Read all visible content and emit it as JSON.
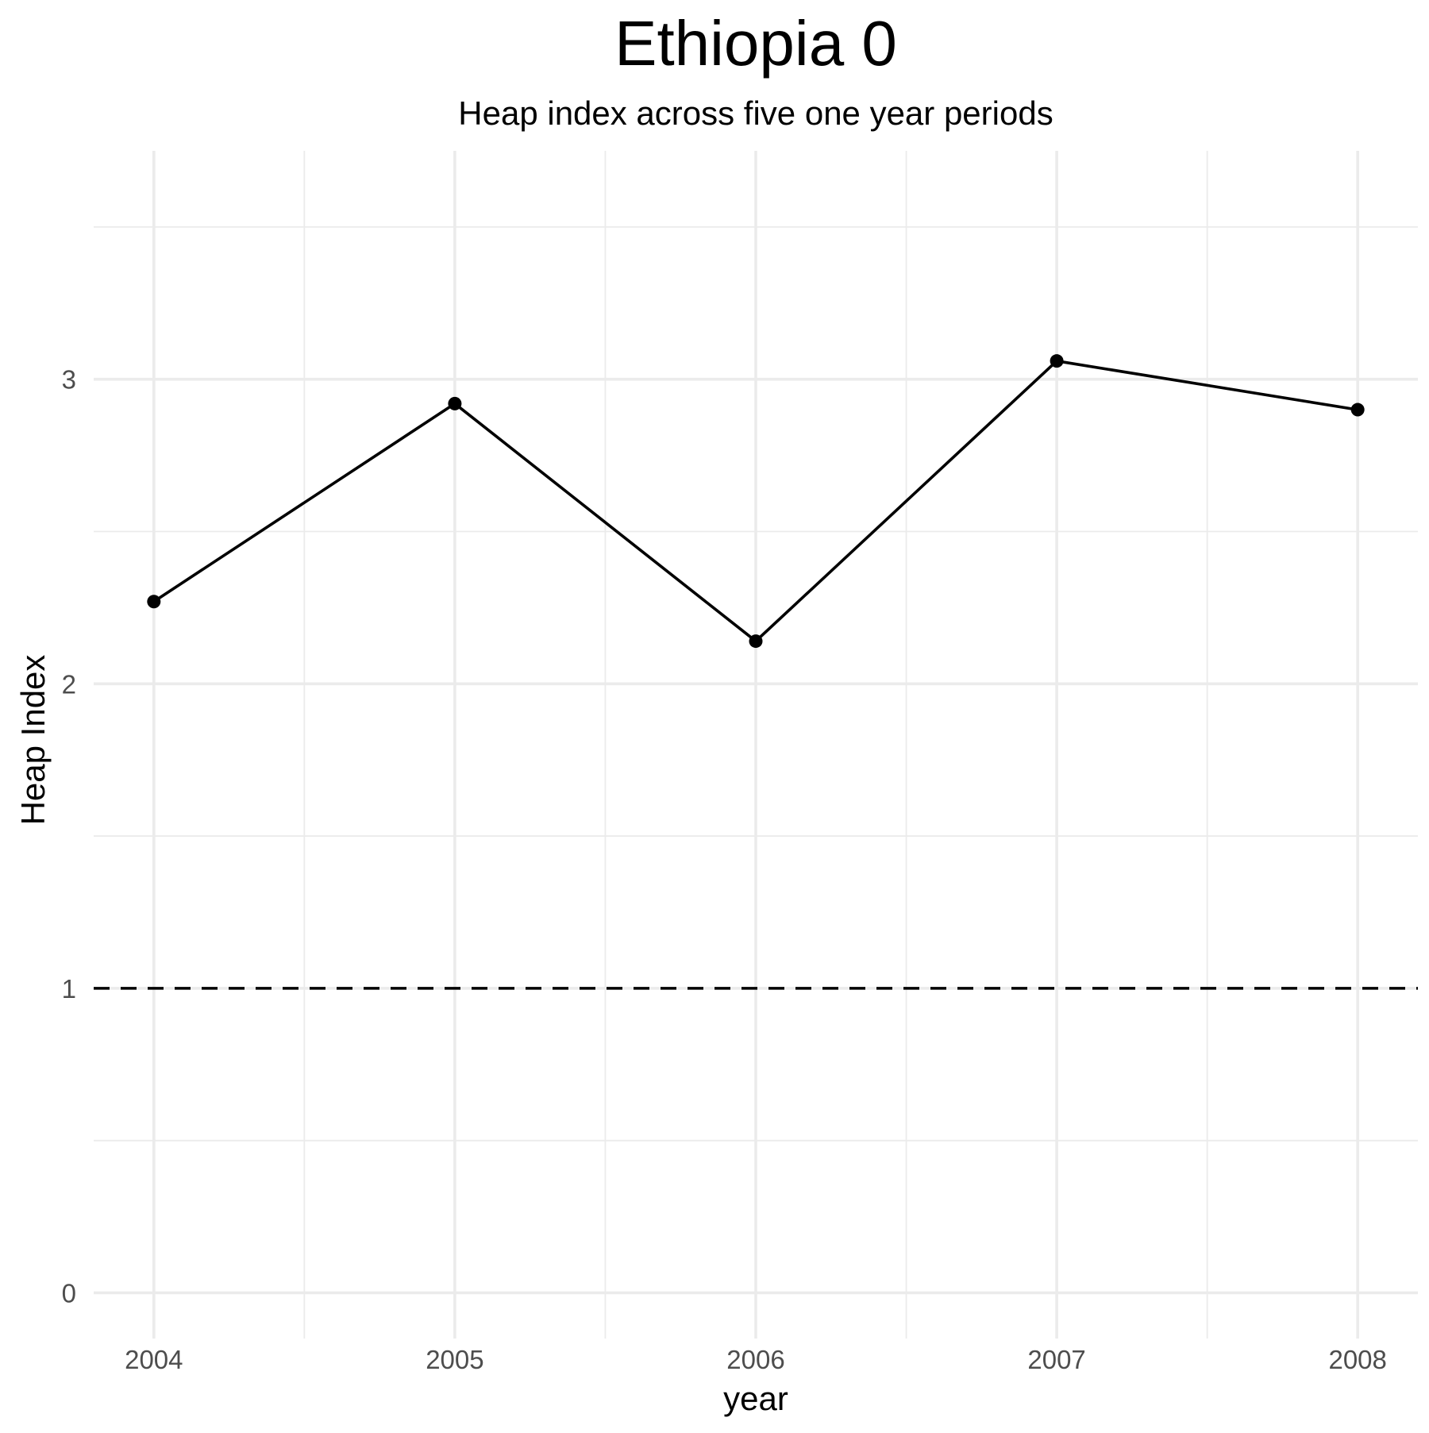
{
  "chart_data": {
    "type": "line",
    "title": "Ethiopia 0",
    "subtitle": "Heap index across five one year periods",
    "xlabel": "year",
    "ylabel": "Heap Index",
    "x": [
      2004,
      2005,
      2006,
      2007,
      2008
    ],
    "x_tick_labels": [
      "2004",
      "2005",
      "2006",
      "2007",
      "2008"
    ],
    "y_ticks": [
      0,
      1,
      2,
      3
    ],
    "y_tick_labels": [
      "0",
      "1",
      "2",
      "3"
    ],
    "series": [
      {
        "values": [
          2.27,
          2.92,
          2.14,
          3.06,
          2.9
        ]
      }
    ],
    "reference_line": {
      "y": 1,
      "style": "dashed"
    },
    "xlim": [
      2003.8,
      2008.2
    ],
    "ylim": [
      -0.15,
      3.75
    ],
    "grid": true,
    "legend": "none",
    "colors": {
      "series": "#000000",
      "grid": "#ebebeb",
      "tick_text": "#4d4d4d",
      "background": "#ffffff"
    }
  }
}
